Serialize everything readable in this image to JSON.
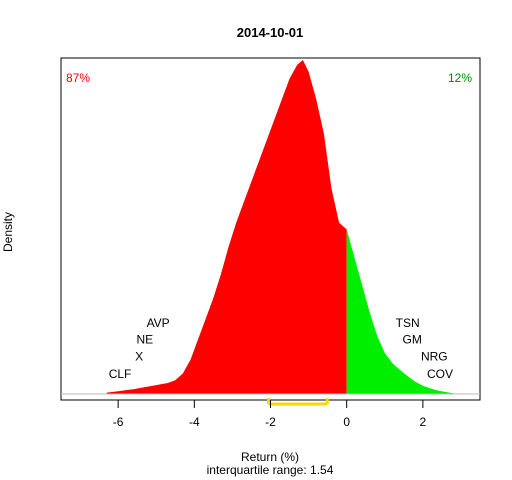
{
  "chart_data": {
    "type": "area",
    "title": "2014-10-01",
    "xlabel": "Return (%)",
    "ylabel": "Density",
    "subtitle": "interquartile range: 1.54",
    "xlim": [
      -7.5,
      3.5
    ],
    "ylim": [
      0,
      0.49
    ],
    "x_ticks": [
      "-6",
      "-4",
      "-2",
      "0",
      "2"
    ],
    "x_tick_values": [
      -6,
      -4,
      -2,
      0,
      2
    ],
    "negative_share": "87%",
    "positive_share": "12%",
    "colors": {
      "negative": "#ff0000",
      "positive": "#00ee00",
      "iqr": "#ffd700",
      "neg_text": "#ff0000",
      "pos_text": "#008800"
    },
    "iqr": [
      -2.05,
      -0.51
    ],
    "density": {
      "x": [
        -6.3,
        -6.0,
        -5.6,
        -5.3,
        -5.0,
        -4.7,
        -4.5,
        -4.3,
        -4.1,
        -3.9,
        -3.7,
        -3.5,
        -3.3,
        -3.1,
        -2.9,
        -2.7,
        -2.5,
        -2.3,
        -2.1,
        -1.9,
        -1.7,
        -1.5,
        -1.3,
        -1.15,
        -1.0,
        -0.8,
        -0.6,
        -0.4,
        -0.2,
        0.0,
        0.2,
        0.4,
        0.6,
        0.8,
        1.0,
        1.2,
        1.4,
        1.6,
        1.8,
        2.0,
        2.2,
        2.4,
        2.6,
        2.8,
        3.0
      ],
      "y": [
        0.002,
        0.004,
        0.007,
        0.01,
        0.013,
        0.016,
        0.02,
        0.03,
        0.05,
        0.08,
        0.11,
        0.14,
        0.175,
        0.215,
        0.25,
        0.28,
        0.31,
        0.34,
        0.37,
        0.4,
        0.43,
        0.46,
        0.48,
        0.487,
        0.47,
        0.43,
        0.38,
        0.3,
        0.25,
        0.24,
        0.2,
        0.16,
        0.12,
        0.085,
        0.06,
        0.045,
        0.035,
        0.026,
        0.018,
        0.012,
        0.008,
        0.005,
        0.003,
        0.001,
        0.0
      ]
    },
    "annotations": [
      {
        "label": "AVP",
        "x": -4.95,
        "y": 0.098
      },
      {
        "label": "NE",
        "x": -5.3,
        "y": 0.074
      },
      {
        "label": "X",
        "x": -5.45,
        "y": 0.049
      },
      {
        "label": "CLF",
        "x": -5.95,
        "y": 0.023
      },
      {
        "label": "TSN",
        "x": 1.6,
        "y": 0.098
      },
      {
        "label": "GM",
        "x": 1.72,
        "y": 0.074
      },
      {
        "label": "NRG",
        "x": 2.3,
        "y": 0.049
      },
      {
        "label": "COV",
        "x": 2.45,
        "y": 0.023
      }
    ]
  }
}
